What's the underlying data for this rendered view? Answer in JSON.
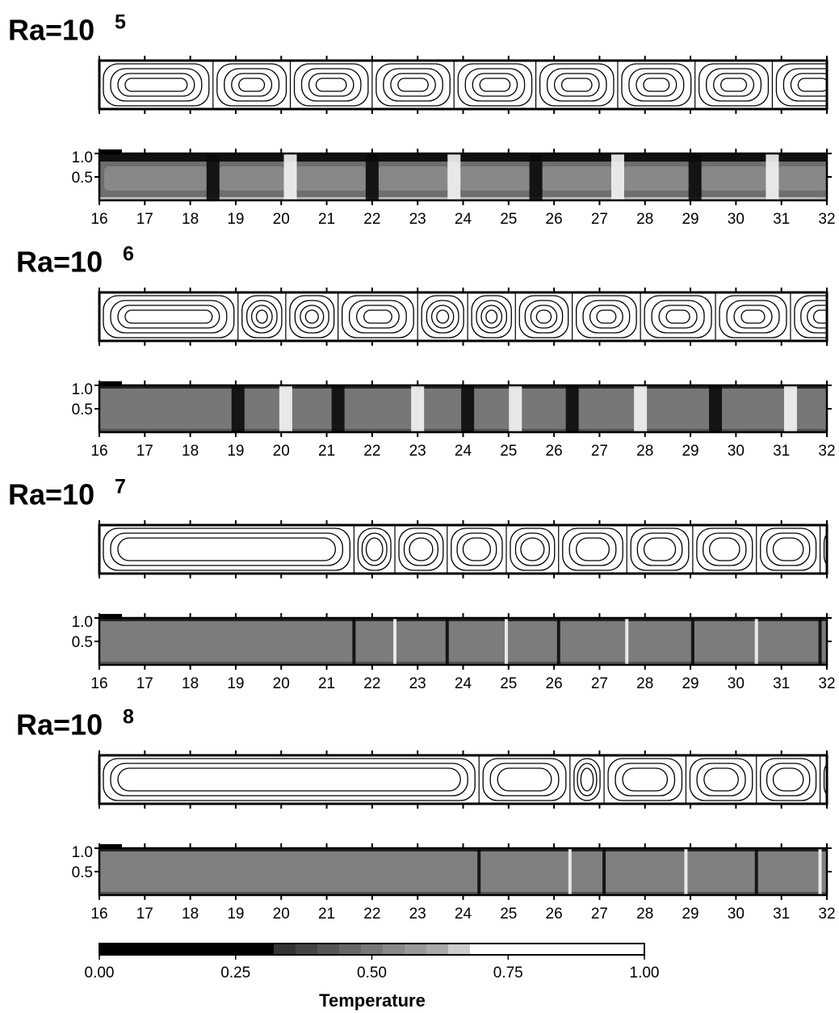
{
  "chart_data": [
    {
      "type": "field",
      "title": "Ra=10",
      "title_exponent": "5",
      "xlim": [
        16,
        32
      ],
      "xticks": [
        16,
        17,
        18,
        19,
        20,
        21,
        22,
        23,
        24,
        25,
        26,
        27,
        28,
        29,
        30,
        31,
        32
      ],
      "ylim": [
        0,
        1
      ],
      "yticks": [
        {
          "value": 1,
          "label": "1.0"
        },
        {
          "value": 0.5,
          "label": "0.5"
        }
      ],
      "cell_boundaries": [
        18.5,
        20.2,
        22.0,
        23.8,
        25.6,
        27.4,
        29.1,
        30.8
      ]
    },
    {
      "type": "field",
      "title": "Ra=10",
      "title_exponent": "6",
      "xlim": [
        16,
        32
      ],
      "xticks": [
        16,
        17,
        18,
        19,
        20,
        21,
        22,
        23,
        24,
        25,
        26,
        27,
        28,
        29,
        30,
        31,
        32
      ],
      "ylim": [
        0,
        1
      ],
      "yticks": [
        {
          "value": 1,
          "label": "1.0"
        },
        {
          "value": 0.5,
          "label": "0.5"
        }
      ],
      "cell_boundaries": [
        19.05,
        20.1,
        21.25,
        23.0,
        24.1,
        25.15,
        26.4,
        27.9,
        29.55,
        31.2
      ]
    },
    {
      "type": "field",
      "title": "Ra=10",
      "title_exponent": "7",
      "xlim": [
        16,
        32
      ],
      "xticks": [
        16,
        17,
        18,
        19,
        20,
        21,
        22,
        23,
        24,
        25,
        26,
        27,
        28,
        29,
        30,
        31,
        32
      ],
      "ylim": [
        0,
        1
      ],
      "yticks": [
        {
          "value": 1,
          "label": "1.0"
        },
        {
          "value": 0.5,
          "label": "0.5"
        }
      ],
      "cell_boundaries": [
        21.6,
        22.5,
        23.65,
        24.95,
        26.1,
        27.6,
        29.05,
        30.45,
        31.85
      ]
    },
    {
      "type": "field",
      "title": "Ra=10",
      "title_exponent": "8",
      "xlim": [
        16,
        32
      ],
      "xticks": [
        16,
        17,
        18,
        19,
        20,
        21,
        22,
        23,
        24,
        25,
        26,
        27,
        28,
        29,
        30,
        31,
        32
      ],
      "ylim": [
        0,
        1
      ],
      "yticks": [
        {
          "value": 1,
          "label": "1.0"
        },
        {
          "value": 0.5,
          "label": "0.5"
        }
      ],
      "cell_boundaries": [
        24.35,
        26.35,
        27.1,
        28.9,
        30.45,
        31.85
      ]
    },
    {
      "type": "colorbar",
      "xlabel": "Temperature",
      "xlim": [
        0,
        1
      ],
      "xticks": [
        {
          "value": 0,
          "label": "0.00"
        },
        {
          "value": 0.25,
          "label": "0.25"
        },
        {
          "value": 0.5,
          "label": "0.50"
        },
        {
          "value": 0.75,
          "label": "0.75"
        },
        {
          "value": 1,
          "label": "1.00"
        }
      ]
    }
  ]
}
